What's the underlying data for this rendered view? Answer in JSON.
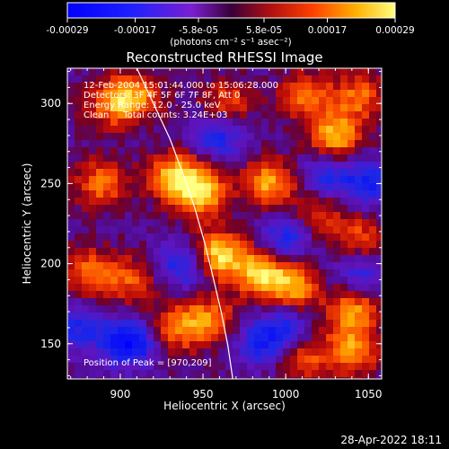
{
  "colorbar": {
    "tick_labels": [
      "-0.00029",
      "-0.00017",
      "-5.8e-05",
      "5.8e-05",
      "0.00017",
      "0.00029"
    ],
    "tick_values": [
      -0.00029,
      -0.00017,
      -5.8e-05,
      5.8e-05,
      0.00017,
      0.00029
    ],
    "range": [
      -0.00029,
      0.00029
    ],
    "unit_label": "(photons cm⁻² s⁻¹ asec⁻²)"
  },
  "chart_data": {
    "type": "heatmap",
    "title": "Reconstructed RHESSI Image",
    "xlabel": "Heliocentric X (arcsec)",
    "ylabel": "Heliocentric Y (arcsec)",
    "xlim": [
      868,
      1058
    ],
    "ylim": [
      128,
      322
    ],
    "xticks": [
      900,
      950,
      1000,
      1050
    ],
    "yticks": [
      150,
      200,
      250,
      300
    ],
    "annotations": [
      "12-Feb-2004 15:01:44.000 to 15:06:28.000",
      "Detectors: 3F 4F 5F 6F 7F 8F, Att 0",
      "Energy Range: 12.0 - 25.0 keV",
      "Clean     Total counts: 3.24E+03"
    ],
    "peak_label": "Position of Peak = [970,209]",
    "peak": [
      970,
      209
    ],
    "limb_curve": [
      [
        910,
        322
      ],
      [
        920,
        300
      ],
      [
        930,
        278
      ],
      [
        938,
        256
      ],
      [
        945,
        235
      ],
      [
        951,
        213
      ],
      [
        956,
        192
      ],
      [
        961,
        170
      ],
      [
        965,
        149
      ],
      [
        968,
        128
      ]
    ],
    "bright_regions": [
      {
        "x": 958,
        "y": 205,
        "intensity": 1.0
      },
      {
        "x": 948,
        "y": 245,
        "intensity": 0.9
      },
      {
        "x": 932,
        "y": 255,
        "intensity": 0.75
      },
      {
        "x": 985,
        "y": 195,
        "intensity": 0.85
      },
      {
        "x": 1005,
        "y": 185,
        "intensity": 0.7
      },
      {
        "x": 990,
        "y": 250,
        "intensity": 0.75
      },
      {
        "x": 1030,
        "y": 280,
        "intensity": 0.8
      },
      {
        "x": 1012,
        "y": 305,
        "intensity": 0.6
      },
      {
        "x": 1045,
        "y": 305,
        "intensity": 0.55
      },
      {
        "x": 895,
        "y": 300,
        "intensity": 0.6
      },
      {
        "x": 910,
        "y": 305,
        "intensity": 0.55
      },
      {
        "x": 888,
        "y": 250,
        "intensity": 0.6
      },
      {
        "x": 880,
        "y": 195,
        "intensity": 0.55
      },
      {
        "x": 905,
        "y": 190,
        "intensity": 0.5
      },
      {
        "x": 1040,
        "y": 170,
        "intensity": 0.7
      },
      {
        "x": 1040,
        "y": 145,
        "intensity": 0.65
      },
      {
        "x": 1010,
        "y": 140,
        "intensity": 0.5
      },
      {
        "x": 935,
        "y": 160,
        "intensity": 0.6
      },
      {
        "x": 955,
        "y": 165,
        "intensity": 0.55
      },
      {
        "x": 1045,
        "y": 215,
        "intensity": 0.5
      },
      {
        "x": 965,
        "y": 300,
        "intensity": 0.5
      },
      {
        "x": 1020,
        "y": 230,
        "intensity": 0.45
      }
    ],
    "dark_regions": [
      {
        "x": 905,
        "y": 150,
        "intensity": 0.9
      },
      {
        "x": 940,
        "y": 200,
        "intensity": 0.7
      },
      {
        "x": 1000,
        "y": 215,
        "intensity": 0.6
      },
      {
        "x": 1050,
        "y": 250,
        "intensity": 0.6
      },
      {
        "x": 1025,
        "y": 255,
        "intensity": 0.5
      },
      {
        "x": 960,
        "y": 280,
        "intensity": 0.6
      },
      {
        "x": 1000,
        "y": 160,
        "intensity": 0.5
      },
      {
        "x": 985,
        "y": 150,
        "intensity": 0.55
      },
      {
        "x": 875,
        "y": 160,
        "intensity": 0.5
      },
      {
        "x": 1045,
        "y": 195,
        "intensity": 0.45
      }
    ]
  },
  "footer": {
    "date_stamp": "28-Apr-2022 18:11"
  }
}
